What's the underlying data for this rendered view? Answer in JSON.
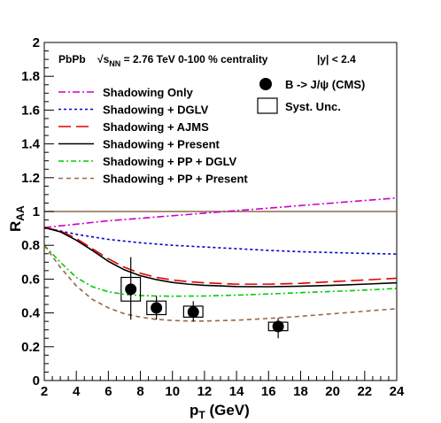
{
  "chart_data": {
    "type": "line",
    "xlabel": "p_T (GeV)",
    "xlabel_main": "p",
    "xlabel_sub": "T",
    "xlabel_rest": " (GeV)",
    "ylabel_main": "R",
    "ylabel_sub": "AA",
    "xlim": [
      2,
      24
    ],
    "ylim": [
      0,
      2
    ],
    "xticks": [
      2,
      4,
      6,
      8,
      10,
      12,
      14,
      16,
      18,
      20,
      22,
      24
    ],
    "yticks": [
      0,
      0.2,
      0.4,
      0.6,
      0.8,
      1,
      1.2,
      1.4,
      1.6,
      1.8,
      2
    ],
    "grid": false,
    "reference_line": {
      "y": 1,
      "color": "#8b6b4a"
    },
    "header": {
      "system": "PbPb",
      "sqrt_symbol": "√",
      "s_label": "s",
      "s_sub": "NN",
      "energy": " = 2.76 TeV  0-100 % centrality",
      "rapidity": "|y| < 2.4"
    },
    "series": [
      {
        "name": "Shadowing Only",
        "color": "#cc00cc",
        "dash": "8,3,2,3",
        "x": [
          2,
          4,
          6,
          8,
          10,
          12,
          14,
          16,
          18,
          20,
          22,
          24
        ],
        "y": [
          0.905,
          0.925,
          0.945,
          0.96,
          0.975,
          0.99,
          1.005,
          1.02,
          1.035,
          1.05,
          1.065,
          1.08
        ]
      },
      {
        "name": "Shadowing + DGLV",
        "color": "#0000cc",
        "dash": "3,3",
        "x": [
          2,
          3,
          4,
          6,
          8,
          10,
          12,
          14,
          16,
          18,
          20,
          22,
          24
        ],
        "y": [
          0.905,
          0.885,
          0.865,
          0.835,
          0.815,
          0.8,
          0.79,
          0.78,
          0.77,
          0.762,
          0.757,
          0.752,
          0.748
        ]
      },
      {
        "name": "Shadowing + AJMS",
        "color": "#e00000",
        "dash": "14,6",
        "x": [
          2,
          3,
          4,
          5,
          6,
          7,
          8,
          9,
          10,
          11,
          12,
          14,
          16,
          18,
          20,
          22,
          24
        ],
        "y": [
          0.905,
          0.885,
          0.84,
          0.78,
          0.72,
          0.67,
          0.635,
          0.61,
          0.595,
          0.585,
          0.578,
          0.57,
          0.57,
          0.575,
          0.585,
          0.595,
          0.605
        ]
      },
      {
        "name": "Shadowing + Present",
        "color": "#000000",
        "dash": "",
        "x": [
          2,
          3,
          4,
          5,
          6,
          7,
          8,
          9,
          10,
          11,
          12,
          14,
          16,
          18,
          20,
          22,
          24
        ],
        "y": [
          0.905,
          0.88,
          0.83,
          0.77,
          0.705,
          0.655,
          0.62,
          0.597,
          0.58,
          0.57,
          0.563,
          0.556,
          0.555,
          0.558,
          0.563,
          0.57,
          0.578
        ]
      },
      {
        "name": "Shadowing + PP + DGLV",
        "color": "#00cc00",
        "dash": "6,3,2,3",
        "x": [
          2,
          3,
          4,
          5,
          6,
          7,
          8,
          9,
          10,
          12,
          14,
          16,
          18,
          20,
          22,
          24
        ],
        "y": [
          0.8,
          0.7,
          0.61,
          0.555,
          0.525,
          0.51,
          0.503,
          0.5,
          0.499,
          0.5,
          0.505,
          0.512,
          0.52,
          0.527,
          0.535,
          0.545
        ]
      },
      {
        "name": "Shadowing + PP + Present",
        "color": "#996644",
        "dash": "5,4",
        "x": [
          2,
          3,
          4,
          5,
          6,
          7,
          8,
          9,
          10,
          11,
          12,
          14,
          16,
          18,
          20,
          22,
          24
        ],
        "y": [
          0.8,
          0.67,
          0.56,
          0.48,
          0.43,
          0.395,
          0.375,
          0.362,
          0.355,
          0.352,
          0.352,
          0.357,
          0.367,
          0.38,
          0.395,
          0.41,
          0.425
        ]
      }
    ],
    "points_label": "B -> J/ψ (CMS)",
    "syst_label": "Syst. Unc.",
    "points": [
      {
        "x": 7.4,
        "y": 0.54,
        "stat_lo": 0.36,
        "stat_hi": 0.73,
        "syst_lo": 0.47,
        "syst_hi": 0.61,
        "xerr": 0.6
      },
      {
        "x": 9.0,
        "y": 0.43,
        "stat_lo": 0.36,
        "stat_hi": 0.5,
        "syst_lo": 0.39,
        "syst_hi": 0.47,
        "xerr": 0.6
      },
      {
        "x": 11.3,
        "y": 0.405,
        "stat_lo": 0.35,
        "stat_hi": 0.47,
        "syst_lo": 0.375,
        "syst_hi": 0.44,
        "xerr": 0.6
      },
      {
        "x": 16.6,
        "y": 0.32,
        "stat_lo": 0.25,
        "stat_hi": 0.37,
        "syst_lo": 0.295,
        "syst_hi": 0.345,
        "xerr": 0.6
      }
    ]
  }
}
